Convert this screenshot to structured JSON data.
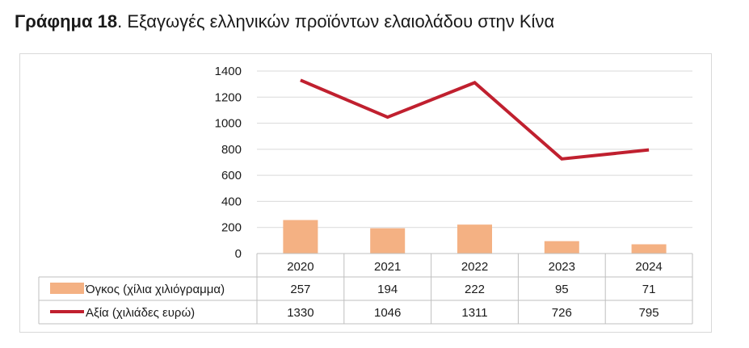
{
  "heading": {
    "bold": "Γράφημα 18",
    "rest": ". Εξαγωγές ελληνικών προϊόντων ελαιολάδου στην Κίνα"
  },
  "chart_data": {
    "type": "bar+line",
    "title": "Γράφημα 18. Εξαγωγές ελληνικών προϊόντων ελαιολάδου στην Κίνα",
    "categories": [
      "2020",
      "2021",
      "2022",
      "2023",
      "2024"
    ],
    "ylim": [
      0,
      1400
    ],
    "yticks": [
      0,
      200,
      400,
      600,
      800,
      1000,
      1200,
      1400
    ],
    "grid": true,
    "legend": "data-table-left",
    "series": [
      {
        "name": "Όγκος (χίλια χιλιόγραμμα)",
        "type": "bar",
        "color": "#f4b183",
        "values": [
          257,
          194,
          222,
          95,
          71
        ]
      },
      {
        "name": "Αξία (χιλιάδες ευρώ)",
        "type": "line",
        "color": "#c0202f",
        "values": [
          1330,
          1046,
          1311,
          726,
          795
        ]
      }
    ]
  }
}
